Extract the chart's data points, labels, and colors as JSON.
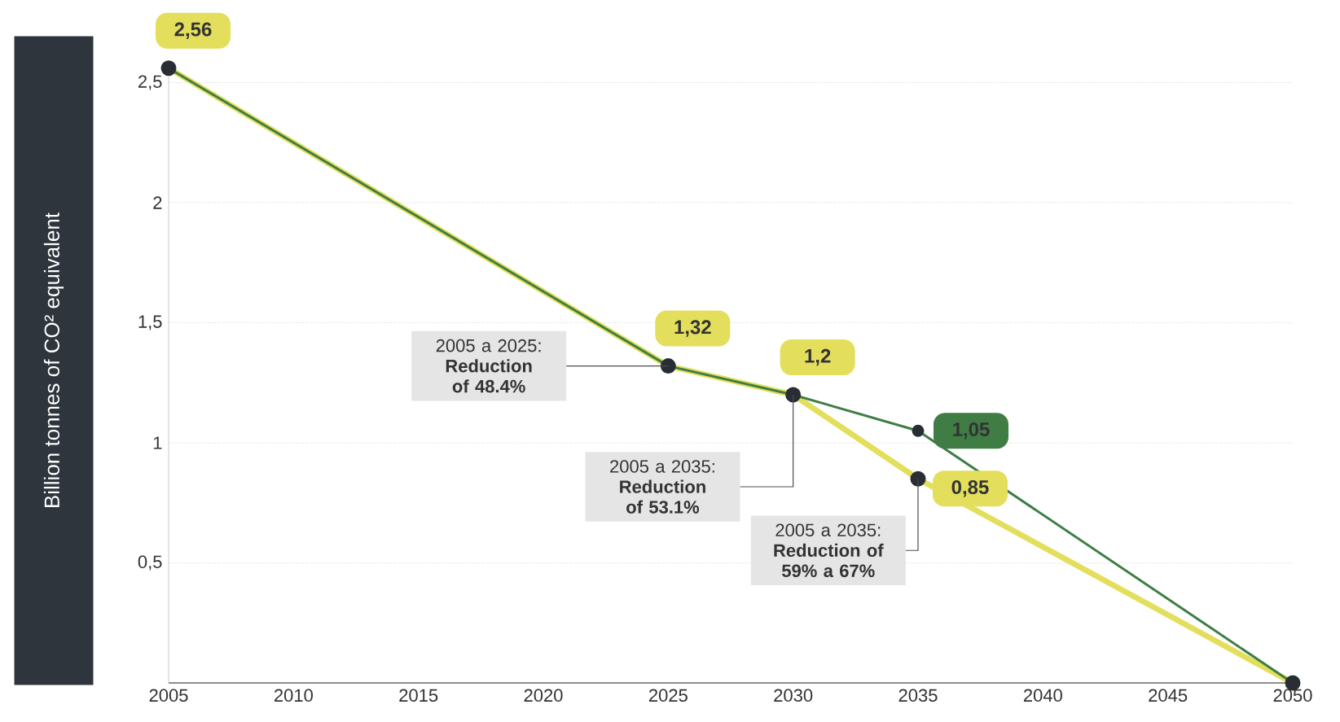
{
  "chart_data": {
    "type": "line",
    "ylabel": "Billion tonnes of CO² equivalent",
    "x": [
      2005,
      2025,
      2030,
      2035,
      2050
    ],
    "series": [
      {
        "color": "#e3df5c",
        "values": [
          2.56,
          1.32,
          1.2,
          0.85,
          0
        ],
        "value_labels": [
          "2,56",
          "1,32",
          "1,2",
          "0,85",
          null
        ]
      },
      {
        "color": "#3f7d45",
        "values": [
          2.56,
          1.32,
          1.2,
          1.05,
          0
        ],
        "value_labels": [
          null,
          null,
          null,
          "1,05",
          null
        ]
      }
    ],
    "xlim": [
      2005,
      2050
    ],
    "xticks": [
      2005,
      2010,
      2015,
      2020,
      2025,
      2030,
      2035,
      2040,
      2045,
      2050
    ],
    "ylim": [
      0,
      2.56
    ],
    "yticks": [
      {
        "value": 0.5,
        "label": "0,5"
      },
      {
        "value": 1,
        "label": "1"
      },
      {
        "value": 1.5,
        "label": "1,5"
      },
      {
        "value": 2,
        "label": "2"
      },
      {
        "value": 2.5,
        "label": "2,5"
      }
    ],
    "grid": "y",
    "marker": "circle",
    "line_style": "solid",
    "annotations": [
      "2005 a 2025: **Reduction of 48.4%**",
      "2005 a 2035: **Reduction of 53.1%**",
      {
        "text": "2005 a 2035: **Reduction of 59% a 67%**",
        "x": 2035,
        "y": 0.85
      }
    ]
  }
}
